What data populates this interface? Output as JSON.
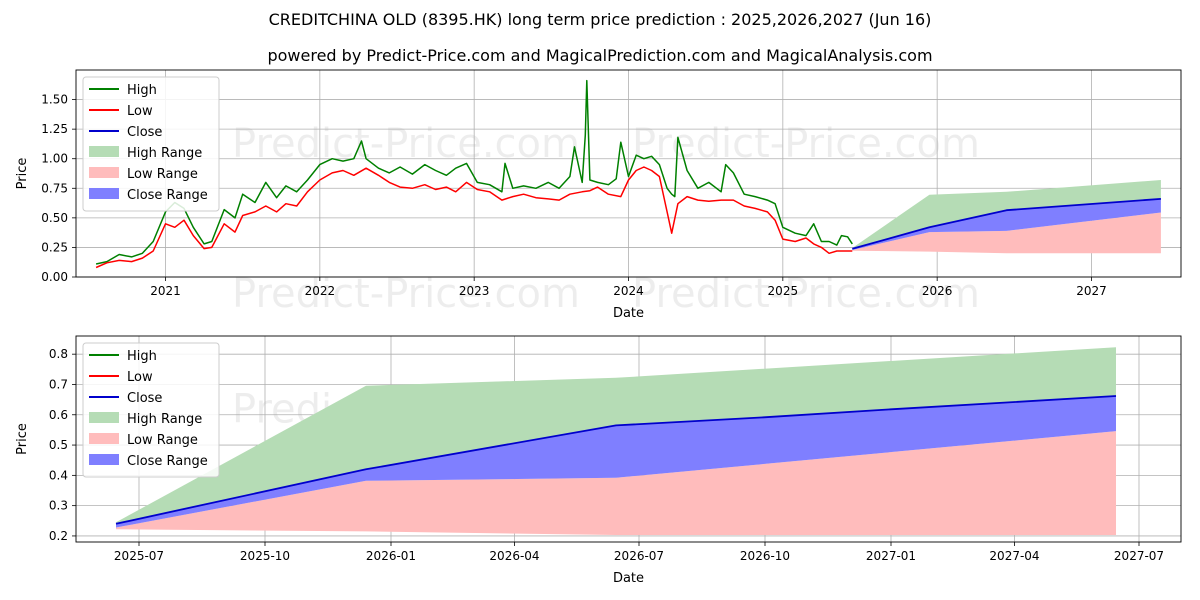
{
  "header": {
    "title": "CREDITCHINA OLD (8395.HK) long term price prediction : 2025,2026,2027 (Jun 16)",
    "subtitle": "powered by Predict-Price.com and MagicalPrediction.com and MagicalAnalysis.com"
  },
  "watermark": "Predict-Price.com",
  "colors": {
    "high": "#008000",
    "low": "#ff0000",
    "close": "#0000cc",
    "high_range": "#b5dcb5",
    "low_range": "#ffbcbc",
    "close_range": "#7f7fff",
    "grid": "#b0b0b0"
  },
  "chart_data": [
    {
      "type": "line",
      "xlabel": "Date",
      "ylabel": "Price",
      "xlim": [
        2020.42,
        2027.58
      ],
      "ylim": [
        0.0,
        1.75
      ],
      "grid": true,
      "legend_position": "top-left",
      "x_ticks": [
        {
          "v": 2021,
          "l": "2021"
        },
        {
          "v": 2022,
          "l": "2022"
        },
        {
          "v": 2023,
          "l": "2023"
        },
        {
          "v": 2024,
          "l": "2024"
        },
        {
          "v": 2025,
          "l": "2025"
        },
        {
          "v": 2026,
          "l": "2026"
        },
        {
          "v": 2027,
          "l": "2027"
        }
      ],
      "y_ticks": [
        {
          "v": 0.0,
          "l": "0.00"
        },
        {
          "v": 0.25,
          "l": "0.25"
        },
        {
          "v": 0.5,
          "l": "0.50"
        },
        {
          "v": 0.75,
          "l": "0.75"
        },
        {
          "v": 1.0,
          "l": "1.00"
        },
        {
          "v": 1.25,
          "l": "1.25"
        },
        {
          "v": 1.5,
          "l": "1.50"
        }
      ],
      "legend": [
        "High",
        "Low",
        "Close",
        "High Range",
        "Low Range",
        "Close Range"
      ],
      "series": [
        {
          "name": "High",
          "x": [
            2020.55,
            2020.62,
            2020.7,
            2020.78,
            2020.85,
            2020.92,
            2021.0,
            2021.06,
            2021.12,
            2021.18,
            2021.25,
            2021.3,
            2021.38,
            2021.45,
            2021.5,
            2021.58,
            2021.65,
            2021.72,
            2021.78,
            2021.85,
            2021.92,
            2022.0,
            2022.08,
            2022.15,
            2022.22,
            2022.27,
            2022.3,
            2022.38,
            2022.45,
            2022.52,
            2022.6,
            2022.68,
            2022.75,
            2022.82,
            2022.88,
            2022.95,
            2023.02,
            2023.1,
            2023.18,
            2023.2,
            2023.25,
            2023.32,
            2023.4,
            2023.48,
            2023.55,
            2023.62,
            2023.65,
            2023.7,
            2023.72,
            2023.73,
            2023.75,
            2023.8,
            2023.87,
            2023.92,
            2023.95,
            2024.0,
            2024.05,
            2024.1,
            2024.15,
            2024.2,
            2024.25,
            2024.28,
            2024.3,
            2024.32,
            2024.38,
            2024.45,
            2024.52,
            2024.6,
            2024.63,
            2024.68,
            2024.75,
            2024.82,
            2024.9,
            2024.95,
            2025.0,
            2025.08,
            2025.15,
            2025.2,
            2025.25,
            2025.3,
            2025.35,
            2025.38,
            2025.42,
            2025.45
          ],
          "values": [
            0.11,
            0.13,
            0.19,
            0.17,
            0.2,
            0.3,
            0.55,
            0.63,
            0.58,
            0.42,
            0.28,
            0.3,
            0.57,
            0.5,
            0.7,
            0.63,
            0.8,
            0.67,
            0.77,
            0.72,
            0.82,
            0.95,
            1.0,
            0.98,
            1.0,
            1.15,
            1.0,
            0.92,
            0.88,
            0.93,
            0.87,
            0.95,
            0.9,
            0.86,
            0.92,
            0.96,
            0.8,
            0.78,
            0.72,
            0.96,
            0.75,
            0.77,
            0.75,
            0.8,
            0.75,
            0.85,
            1.1,
            0.8,
            1.2,
            1.66,
            0.82,
            0.8,
            0.78,
            0.83,
            1.14,
            0.85,
            1.03,
            1.0,
            1.02,
            0.95,
            0.75,
            0.7,
            0.68,
            1.18,
            0.9,
            0.75,
            0.8,
            0.72,
            0.95,
            0.88,
            0.7,
            0.68,
            0.65,
            0.62,
            0.42,
            0.37,
            0.35,
            0.45,
            0.3,
            0.3,
            0.27,
            0.35,
            0.34,
            0.28
          ]
        },
        {
          "name": "Low",
          "x": [
            2020.55,
            2020.62,
            2020.7,
            2020.78,
            2020.85,
            2020.92,
            2021.0,
            2021.06,
            2021.12,
            2021.18,
            2021.25,
            2021.3,
            2021.38,
            2021.45,
            2021.5,
            2021.58,
            2021.65,
            2021.72,
            2021.78,
            2021.85,
            2021.92,
            2022.0,
            2022.08,
            2022.15,
            2022.22,
            2022.3,
            2022.38,
            2022.45,
            2022.52,
            2022.6,
            2022.68,
            2022.75,
            2022.82,
            2022.88,
            2022.95,
            2023.02,
            2023.1,
            2023.18,
            2023.25,
            2023.32,
            2023.4,
            2023.48,
            2023.55,
            2023.62,
            2023.7,
            2023.75,
            2023.8,
            2023.87,
            2023.95,
            2024.0,
            2024.05,
            2024.1,
            2024.15,
            2024.2,
            2024.25,
            2024.28,
            2024.32,
            2024.38,
            2024.45,
            2024.52,
            2024.6,
            2024.68,
            2024.75,
            2024.82,
            2024.9,
            2024.95,
            2025.0,
            2025.08,
            2025.15,
            2025.2,
            2025.25,
            2025.3,
            2025.35,
            2025.4,
            2025.45
          ],
          "values": [
            0.08,
            0.12,
            0.14,
            0.13,
            0.16,
            0.22,
            0.45,
            0.42,
            0.48,
            0.35,
            0.24,
            0.25,
            0.45,
            0.38,
            0.52,
            0.55,
            0.6,
            0.55,
            0.62,
            0.6,
            0.72,
            0.82,
            0.88,
            0.9,
            0.86,
            0.92,
            0.86,
            0.8,
            0.76,
            0.75,
            0.78,
            0.74,
            0.76,
            0.72,
            0.8,
            0.74,
            0.72,
            0.65,
            0.68,
            0.7,
            0.67,
            0.66,
            0.65,
            0.7,
            0.72,
            0.73,
            0.76,
            0.7,
            0.68,
            0.82,
            0.9,
            0.93,
            0.9,
            0.85,
            0.55,
            0.37,
            0.62,
            0.68,
            0.65,
            0.64,
            0.65,
            0.65,
            0.6,
            0.58,
            0.55,
            0.48,
            0.32,
            0.3,
            0.33,
            0.28,
            0.25,
            0.2,
            0.22,
            0.22,
            0.22
          ]
        },
        {
          "name": "Close",
          "x": [
            2025.45,
            2025.95,
            2026.45,
            2027.45
          ],
          "values": [
            0.238,
            0.42,
            0.565,
            0.66
          ]
        }
      ],
      "ranges": [
        {
          "name": "High Range",
          "x": [
            2025.45,
            2025.95,
            2026.45,
            2027.45
          ],
          "upper": [
            0.245,
            0.695,
            0.72,
            0.82
          ],
          "lower": [
            0.24,
            0.42,
            0.565,
            0.66
          ]
        },
        {
          "name": "Low Range",
          "x": [
            2025.45,
            2025.95,
            2026.45,
            2027.45
          ],
          "upper": [
            0.228,
            0.38,
            0.39,
            0.545
          ],
          "lower": [
            0.222,
            0.215,
            0.2,
            0.2
          ]
        },
        {
          "name": "Close Range",
          "x": [
            2025.45,
            2025.95,
            2026.45,
            2027.45
          ],
          "upper": [
            0.24,
            0.42,
            0.565,
            0.66
          ],
          "lower": [
            0.228,
            0.38,
            0.39,
            0.545
          ]
        }
      ]
    },
    {
      "type": "line",
      "xlabel": "Date",
      "ylabel": "Price",
      "xlim": [
        2025.37,
        2027.58
      ],
      "ylim": [
        0.18,
        0.86
      ],
      "grid": true,
      "legend_position": "top-left",
      "x_ticks": [
        {
          "v": 2025.496,
          "l": "2025-07"
        },
        {
          "v": 2025.748,
          "l": "2025-10"
        },
        {
          "v": 2026.0,
          "l": "2026-01"
        },
        {
          "v": 2026.247,
          "l": "2026-04"
        },
        {
          "v": 2026.496,
          "l": "2026-07"
        },
        {
          "v": 2026.748,
          "l": "2026-10"
        },
        {
          "v": 2027.0,
          "l": "2027-01"
        },
        {
          "v": 2027.247,
          "l": "2027-04"
        },
        {
          "v": 2027.496,
          "l": "2027-07"
        }
      ],
      "y_ticks": [
        {
          "v": 0.2,
          "l": "0.2"
        },
        {
          "v": 0.3,
          "l": "0.3"
        },
        {
          "v": 0.4,
          "l": "0.4"
        },
        {
          "v": 0.5,
          "l": "0.5"
        },
        {
          "v": 0.6,
          "l": "0.6"
        },
        {
          "v": 0.7,
          "l": "0.7"
        },
        {
          "v": 0.8,
          "l": "0.8"
        }
      ],
      "legend": [
        "High",
        "Low",
        "Close",
        "High Range",
        "Low Range",
        "Close Range"
      ],
      "series": [
        {
          "name": "Close",
          "x": [
            2025.45,
            2025.95,
            2026.45,
            2026.75,
            2027.0,
            2027.45
          ],
          "values": [
            0.24,
            0.42,
            0.565,
            0.592,
            0.618,
            0.662
          ]
        }
      ],
      "ranges": [
        {
          "name": "High Range",
          "x": [
            2025.45,
            2025.95,
            2026.45,
            2027.45
          ],
          "upper": [
            0.245,
            0.696,
            0.722,
            0.823
          ],
          "lower": [
            0.24,
            0.42,
            0.565,
            0.662
          ]
        },
        {
          "name": "Low Range",
          "x": [
            2025.45,
            2025.95,
            2026.45,
            2027.45
          ],
          "upper": [
            0.228,
            0.382,
            0.392,
            0.546
          ],
          "lower": [
            0.222,
            0.215,
            0.203,
            0.203
          ]
        },
        {
          "name": "Close Range",
          "x": [
            2025.45,
            2025.95,
            2026.45,
            2027.45
          ],
          "upper": [
            0.24,
            0.42,
            0.565,
            0.662
          ],
          "lower": [
            0.228,
            0.382,
            0.392,
            0.546
          ]
        }
      ]
    }
  ]
}
